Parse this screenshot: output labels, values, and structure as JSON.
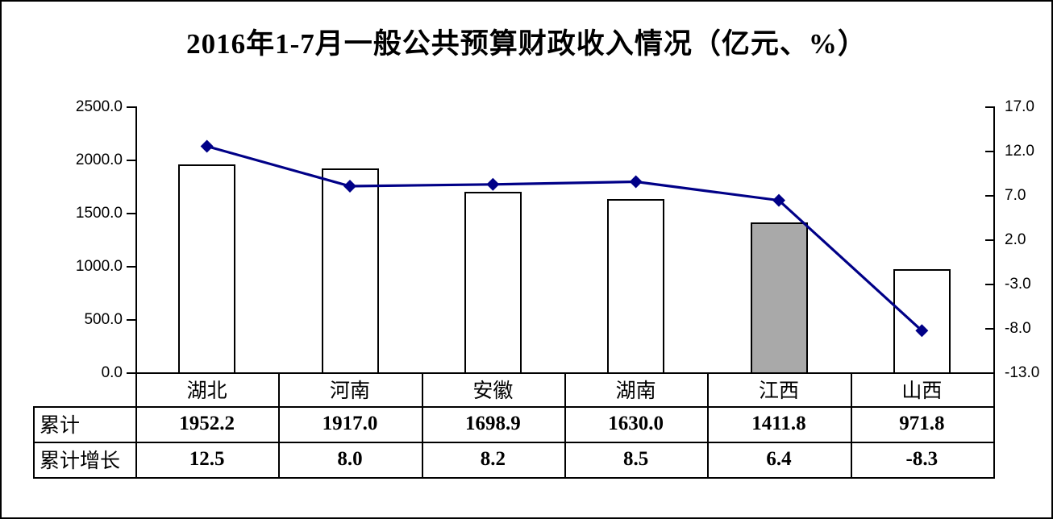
{
  "title": "2016年1-7月一般公共预算财政收入情况（亿元、%）",
  "chart_data": {
    "type": "combo-bar-line",
    "categories": [
      "湖北",
      "河南",
      "安徽",
      "湖南",
      "江西",
      "山西"
    ],
    "series": [
      {
        "name": "累计",
        "type": "bar",
        "axis": "left",
        "values": [
          1952.2,
          1917.0,
          1698.9,
          1630.0,
          1411.8,
          971.8
        ],
        "bar_fills": [
          "#ffffff",
          "#ffffff",
          "#ffffff",
          "#ffffff",
          "#a9a9a9",
          "#ffffff"
        ],
        "bar_border_color": "#000000"
      },
      {
        "name": "累计增长",
        "type": "line",
        "axis": "right",
        "values": [
          12.5,
          8.0,
          8.2,
          8.5,
          6.4,
          -8.3
        ],
        "color": "#000087",
        "marker": "diamond"
      }
    ],
    "left_axis": {
      "min": 0,
      "max": 2500,
      "tick_labels": [
        "2500.0",
        "2000.0",
        "1500.0",
        "1000.0",
        "500.0",
        "0.0"
      ]
    },
    "right_axis": {
      "min": -13,
      "max": 17,
      "tick_labels": [
        "17.0",
        "12.0",
        "7.0",
        "2.0",
        "-3.0",
        "-8.0",
        "-13.0"
      ]
    },
    "grid": false,
    "legend_position": "none"
  },
  "table": {
    "row_headers": [
      "累计",
      "累计增长"
    ],
    "rows": [
      [
        "1952.2",
        "1917.0",
        "1698.9",
        "1630.0",
        "1411.8",
        "971.8"
      ],
      [
        "12.5",
        "8.0",
        "8.2",
        "8.5",
        "6.4",
        "-8.3"
      ]
    ]
  },
  "colors": {
    "background": "#ffffff",
    "frame": "#000000",
    "line_series": "#000087",
    "bar_fill": "#ffffff",
    "highlight_bar_fill": "#a9a9a9"
  }
}
